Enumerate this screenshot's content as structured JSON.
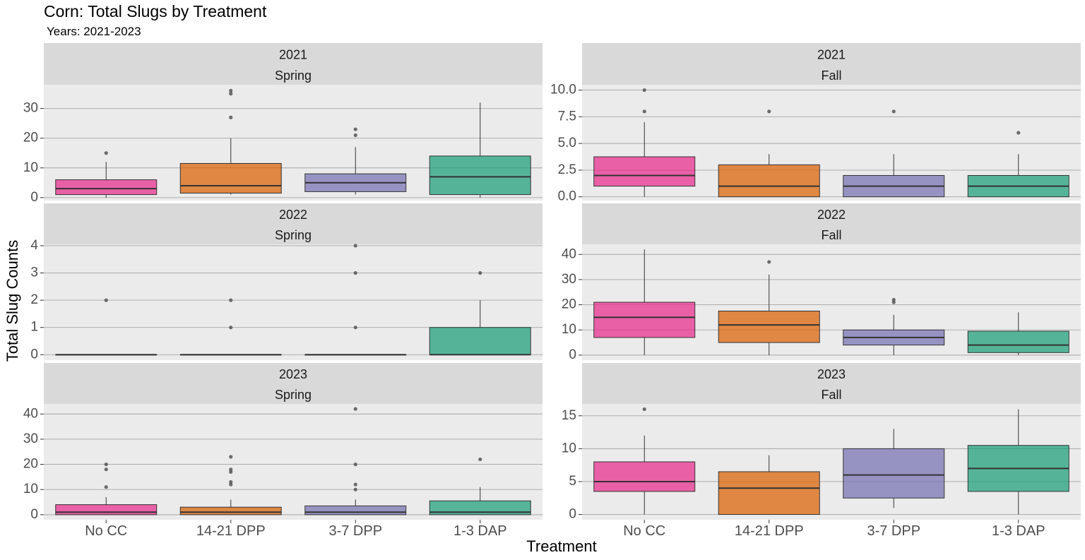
{
  "chart_data": {
    "type": "box",
    "title": "Corn: Total Slugs by Treatment",
    "subtitle": "Years: 2021-2023",
    "xlabel": "Treatment",
    "ylabel": "Total Slug Counts",
    "categories": [
      "No CC",
      "14-21 DPP",
      "3-7 DPP",
      "1-3 DAP"
    ],
    "colors": [
      "#E7298A",
      "#D95F02",
      "#7570B3",
      "#1B9E77"
    ],
    "grid": true,
    "legend": "none",
    "panels": [
      {
        "year": "2021",
        "season": "Spring",
        "col": 0,
        "row": 0,
        "ylim": [
          -1,
          38
        ],
        "yticks": [
          0,
          10,
          20,
          30
        ],
        "boxes": [
          {
            "min": 0,
            "q1": 1,
            "median": 3,
            "q3": 6,
            "max": 12,
            "outliers": [
              15
            ]
          },
          {
            "min": 1,
            "q1": 1.5,
            "median": 4,
            "q3": 11.5,
            "max": 20,
            "outliers": [
              27,
              35,
              36
            ]
          },
          {
            "min": 1,
            "q1": 2,
            "median": 5,
            "q3": 8,
            "max": 17,
            "outliers": [
              21,
              23
            ]
          },
          {
            "min": 0,
            "q1": 1,
            "median": 7,
            "q3": 14,
            "max": 32,
            "outliers": []
          }
        ]
      },
      {
        "year": "2021",
        "season": "Fall",
        "col": 1,
        "row": 0,
        "ylim": [
          -0.35,
          10.5
        ],
        "yticks": [
          0.0,
          2.5,
          5.0,
          7.5,
          10.0
        ],
        "decimals": 1,
        "boxes": [
          {
            "min": 0,
            "q1": 1,
            "median": 2,
            "q3": 3.75,
            "max": 7,
            "outliers": [
              8,
              10
            ]
          },
          {
            "min": 0,
            "q1": 0,
            "median": 1,
            "q3": 3,
            "max": 4,
            "outliers": [
              8
            ]
          },
          {
            "min": 0,
            "q1": 0,
            "median": 1,
            "q3": 2,
            "max": 4,
            "outliers": [
              8
            ]
          },
          {
            "min": 0,
            "q1": 0,
            "median": 1,
            "q3": 2,
            "max": 4,
            "outliers": [
              6
            ]
          }
        ]
      },
      {
        "year": "2022",
        "season": "Spring",
        "col": 0,
        "row": 1,
        "ylim": [
          -0.2,
          4.05
        ],
        "yticks": [
          0,
          1,
          2,
          3,
          4
        ],
        "boxes": [
          {
            "min": 0,
            "q1": 0,
            "median": 0,
            "q3": 0,
            "max": 0,
            "outliers": [
              2
            ]
          },
          {
            "min": 0,
            "q1": 0,
            "median": 0,
            "q3": 0,
            "max": 0,
            "outliers": [
              1,
              2
            ]
          },
          {
            "min": 0,
            "q1": 0,
            "median": 0,
            "q3": 0,
            "max": 0,
            "outliers": [
              1,
              3,
              4
            ]
          },
          {
            "min": 0,
            "q1": 0,
            "median": 0,
            "q3": 1,
            "max": 2,
            "outliers": [
              3
            ]
          }
        ]
      },
      {
        "year": "2022",
        "season": "Fall",
        "col": 1,
        "row": 1,
        "ylim": [
          -2,
          44
        ],
        "yticks": [
          0,
          10,
          20,
          30,
          40
        ],
        "boxes": [
          {
            "min": 0,
            "q1": 7,
            "median": 15,
            "q3": 21,
            "max": 42,
            "outliers": []
          },
          {
            "min": 0,
            "q1": 5,
            "median": 12,
            "q3": 17.5,
            "max": 32,
            "outliers": [
              37
            ]
          },
          {
            "min": 0,
            "q1": 4,
            "median": 7,
            "q3": 10,
            "max": 16,
            "outliers": [
              21,
              22
            ]
          },
          {
            "min": 0,
            "q1": 1,
            "median": 4,
            "q3": 9.5,
            "max": 17,
            "outliers": []
          }
        ]
      },
      {
        "year": "2023",
        "season": "Spring",
        "col": 0,
        "row": 2,
        "ylim": [
          -2,
          44
        ],
        "yticks": [
          0,
          10,
          20,
          30,
          40
        ],
        "boxes": [
          {
            "min": 0,
            "q1": 0,
            "median": 1,
            "q3": 4,
            "max": 7,
            "outliers": [
              11,
              18,
              20
            ]
          },
          {
            "min": 0,
            "q1": 0,
            "median": 1,
            "q3": 3,
            "max": 6,
            "outliers": [
              12,
              13,
              17,
              18,
              23
            ]
          },
          {
            "min": 0,
            "q1": 0,
            "median": 1,
            "q3": 3.5,
            "max": 6,
            "outliers": [
              10,
              12,
              20,
              42
            ]
          },
          {
            "min": 0,
            "q1": 0,
            "median": 1,
            "q3": 5.5,
            "max": 11,
            "outliers": [
              22
            ]
          }
        ]
      },
      {
        "year": "2023",
        "season": "Fall",
        "col": 1,
        "row": 2,
        "ylim": [
          -0.8,
          16.8
        ],
        "yticks": [
          0,
          5,
          10,
          15
        ],
        "boxes": [
          {
            "min": 0,
            "q1": 3.5,
            "median": 5,
            "q3": 8,
            "max": 12,
            "outliers": [
              16
            ]
          },
          {
            "min": 0,
            "q1": 0,
            "median": 4,
            "q3": 6.5,
            "max": 9,
            "outliers": []
          },
          {
            "min": 1,
            "q1": 2.5,
            "median": 6,
            "q3": 10,
            "max": 13,
            "outliers": []
          },
          {
            "min": 0,
            "q1": 3.5,
            "median": 7,
            "q3": 10.5,
            "max": 16,
            "outliers": []
          }
        ]
      }
    ]
  }
}
